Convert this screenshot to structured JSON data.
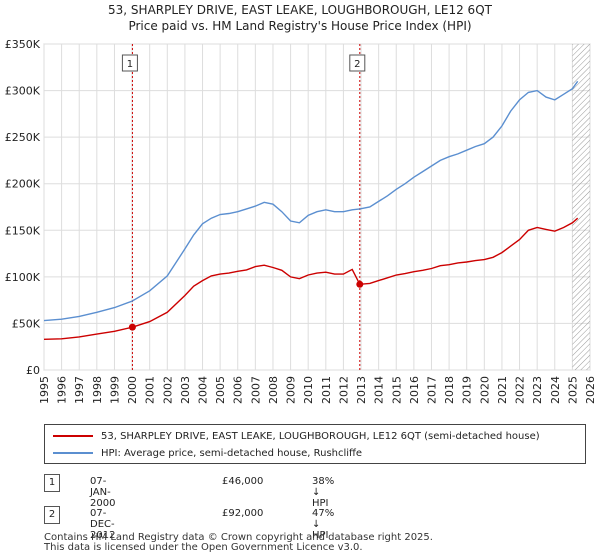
{
  "title_line1": "53, SHARPLEY DRIVE, EAST LEAKE, LOUGHBOROUGH, LE12 6QT",
  "title_line2": "Price paid vs. HM Land Registry's House Price Index (HPI)",
  "colors": {
    "property": "#cc0000",
    "hpi": "#5b8fd0",
    "grid": "#dddddd",
    "marker_line": "#cc0000",
    "hatch": "#888888"
  },
  "chart_data": {
    "type": "line",
    "xlim": [
      1995,
      2026
    ],
    "ylim": [
      0,
      350000
    ],
    "x_ticks": [
      "1995",
      "1996",
      "1997",
      "1998",
      "1999",
      "2000",
      "2001",
      "2002",
      "2003",
      "2004",
      "2005",
      "2006",
      "2007",
      "2008",
      "2009",
      "2010",
      "2011",
      "2012",
      "2013",
      "2014",
      "2015",
      "2016",
      "2017",
      "2018",
      "2019",
      "2020",
      "2021",
      "2022",
      "2023",
      "2024",
      "2025",
      "2026"
    ],
    "y_ticks": [
      {
        "value": 0,
        "label": "£0"
      },
      {
        "value": 50000,
        "label": "£50K"
      },
      {
        "value": 100000,
        "label": "£100K"
      },
      {
        "value": 150000,
        "label": "£150K"
      },
      {
        "value": 200000,
        "label": "£200K"
      },
      {
        "value": 250000,
        "label": "£250K"
      },
      {
        "value": 300000,
        "label": "£300K"
      },
      {
        "value": 350000,
        "label": "£350K"
      }
    ],
    "grid": true,
    "hatched_from": 2025.0,
    "series": [
      {
        "name": "53, SHARPLEY DRIVE, EAST LEAKE, LOUGHBOROUGH, LE12 6QT (semi-detached house)",
        "color": "#cc0000",
        "points": [
          [
            1995.0,
            33000
          ],
          [
            1996.0,
            33500
          ],
          [
            1997.0,
            35500
          ],
          [
            1998.0,
            38500
          ],
          [
            1999.0,
            41500
          ],
          [
            2000.02,
            46000
          ],
          [
            2001.0,
            52000
          ],
          [
            2002.0,
            62000
          ],
          [
            2003.0,
            80000
          ],
          [
            2003.5,
            90000
          ],
          [
            2004.0,
            96000
          ],
          [
            2004.5,
            101000
          ],
          [
            2005.0,
            103000
          ],
          [
            2005.5,
            104000
          ],
          [
            2006.0,
            106000
          ],
          [
            2006.5,
            107500
          ],
          [
            2007.0,
            111000
          ],
          [
            2007.5,
            112500
          ],
          [
            2008.0,
            110000
          ],
          [
            2008.5,
            107000
          ],
          [
            2009.0,
            100000
          ],
          [
            2009.5,
            98000
          ],
          [
            2010.0,
            102000
          ],
          [
            2010.5,
            104000
          ],
          [
            2011.0,
            105000
          ],
          [
            2011.5,
            103000
          ],
          [
            2012.0,
            103000
          ],
          [
            2012.5,
            108000
          ],
          [
            2012.93,
            92000
          ],
          [
            2013.5,
            93000
          ],
          [
            2014.0,
            96000
          ],
          [
            2014.5,
            99000
          ],
          [
            2015.0,
            102000
          ],
          [
            2015.5,
            103500
          ],
          [
            2016.0,
            105500
          ],
          [
            2016.5,
            107000
          ],
          [
            2017.0,
            109000
          ],
          [
            2017.5,
            112000
          ],
          [
            2018.0,
            113000
          ],
          [
            2018.5,
            115000
          ],
          [
            2019.0,
            116000
          ],
          [
            2019.5,
            117500
          ],
          [
            2020.0,
            118500
          ],
          [
            2020.5,
            121000
          ],
          [
            2021.0,
            126000
          ],
          [
            2021.5,
            133000
          ],
          [
            2022.0,
            140000
          ],
          [
            2022.5,
            150000
          ],
          [
            2023.0,
            153000
          ],
          [
            2023.5,
            151000
          ],
          [
            2024.0,
            149000
          ],
          [
            2024.5,
            153000
          ],
          [
            2025.0,
            158000
          ],
          [
            2025.3,
            163000
          ]
        ]
      },
      {
        "name": "HPI: Average price, semi-detached house, Rushcliffe",
        "color": "#5b8fd0",
        "points": [
          [
            1995.0,
            53000
          ],
          [
            1996.0,
            54500
          ],
          [
            1997.0,
            57500
          ],
          [
            1998.0,
            62000
          ],
          [
            1999.0,
            67000
          ],
          [
            2000.0,
            74000
          ],
          [
            2001.0,
            85000
          ],
          [
            2002.0,
            101000
          ],
          [
            2003.0,
            130000
          ],
          [
            2003.5,
            145000
          ],
          [
            2004.0,
            157000
          ],
          [
            2004.5,
            163000
          ],
          [
            2005.0,
            167000
          ],
          [
            2005.5,
            168000
          ],
          [
            2006.0,
            170000
          ],
          [
            2006.5,
            173000
          ],
          [
            2007.0,
            176000
          ],
          [
            2007.5,
            180000
          ],
          [
            2008.0,
            178000
          ],
          [
            2008.5,
            170000
          ],
          [
            2009.0,
            160000
          ],
          [
            2009.5,
            158000
          ],
          [
            2010.0,
            166000
          ],
          [
            2010.5,
            170000
          ],
          [
            2011.0,
            172000
          ],
          [
            2011.5,
            170000
          ],
          [
            2012.0,
            170000
          ],
          [
            2012.5,
            172000
          ],
          [
            2012.93,
            173000
          ],
          [
            2013.5,
            175000
          ],
          [
            2014.0,
            181000
          ],
          [
            2014.5,
            187000
          ],
          [
            2015.0,
            194000
          ],
          [
            2015.5,
            200000
          ],
          [
            2016.0,
            207000
          ],
          [
            2016.5,
            213000
          ],
          [
            2017.0,
            219000
          ],
          [
            2017.5,
            225000
          ],
          [
            2018.0,
            229000
          ],
          [
            2018.5,
            232000
          ],
          [
            2019.0,
            236000
          ],
          [
            2019.5,
            240000
          ],
          [
            2020.0,
            243000
          ],
          [
            2020.5,
            250000
          ],
          [
            2021.0,
            262000
          ],
          [
            2021.5,
            278000
          ],
          [
            2022.0,
            290000
          ],
          [
            2022.5,
            298000
          ],
          [
            2023.0,
            300000
          ],
          [
            2023.5,
            293000
          ],
          [
            2024.0,
            290000
          ],
          [
            2024.5,
            296000
          ],
          [
            2025.0,
            302000
          ],
          [
            2025.3,
            310000
          ]
        ]
      }
    ],
    "markers": [
      {
        "label": "1",
        "x": 2000.02,
        "y": 46000
      },
      {
        "label": "2",
        "x": 2012.93,
        "y": 92000
      }
    ]
  },
  "legend": {
    "property_label": "53, SHARPLEY DRIVE, EAST LEAKE, LOUGHBOROUGH, LE12 6QT (semi-detached house)",
    "hpi_label": "HPI: Average price, semi-detached house, Rushcliffe"
  },
  "annotations": [
    {
      "num": "1",
      "date": "07-JAN-2000",
      "price": "£46,000",
      "hpi": "38% ↓ HPI"
    },
    {
      "num": "2",
      "date": "07-DEC-2012",
      "price": "£92,000",
      "hpi": "47% ↓ HPI"
    }
  ],
  "footer": {
    "line1": "Contains HM Land Registry data © Crown copyright and database right 2025.",
    "line2": "This data is licensed under the Open Government Licence v3.0."
  }
}
